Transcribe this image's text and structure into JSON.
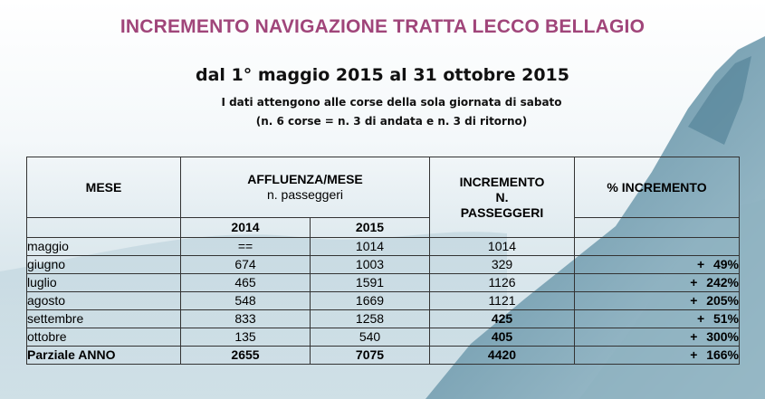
{
  "title": "INCREMENTO NAVIGAZIONE TRATTA LECCO BELLAGIO",
  "subtitle": "dal 1° maggio 2015 al 31 ottobre 2015",
  "note_line1": "I dati attengono alle corse della sola giornata  di sabato",
  "note_line2": "(n. 6 corse = n. 3 di andata e n. 3 di ritorno)",
  "table": {
    "headers": {
      "mese": "MESE",
      "affluenza_line1": "AFFLUENZA/MESE",
      "affluenza_line2": "n. passeggeri",
      "incremento_line1": "INCREMENTO",
      "incremento_line2": "N.",
      "incremento_line3": "PASSEGGERI",
      "percent": "% INCREMENTO",
      "year1": "2014",
      "year2": "2015"
    },
    "rows": [
      {
        "mese": "maggio",
        "y2014": "==",
        "y2015": "1014",
        "incremento": "1014",
        "pct_sign": "",
        "pct": ""
      },
      {
        "mese": "giugno",
        "y2014": "674",
        "y2015": "1003",
        "incremento": "329",
        "pct_sign": "+",
        "pct": "49%"
      },
      {
        "mese": "luglio",
        "y2014": "465",
        "y2015": "1591",
        "incremento": "1126",
        "pct_sign": "+",
        "pct": "242%"
      },
      {
        "mese": "agosto",
        "y2014": "548",
        "y2015": "1669",
        "incremento": "1121",
        "pct_sign": "+",
        "pct": "205%"
      },
      {
        "mese": "settembre",
        "y2014": "833",
        "y2015": "1258",
        "incremento": "425",
        "pct_sign": "+",
        "pct": "51%"
      },
      {
        "mese": "ottobre",
        "y2014": "135",
        "y2015": "540",
        "incremento": "405",
        "pct_sign": "+",
        "pct": "300%"
      }
    ],
    "total": {
      "mese": "Parziale ANNO",
      "y2014": "2655",
      "y2015": "7075",
      "incremento": "4420",
      "pct_sign": "+",
      "pct": "166%"
    }
  },
  "colors": {
    "title": "#a0457a",
    "background_sky": "#d6e6ec",
    "mountain": "#6f98a9"
  }
}
